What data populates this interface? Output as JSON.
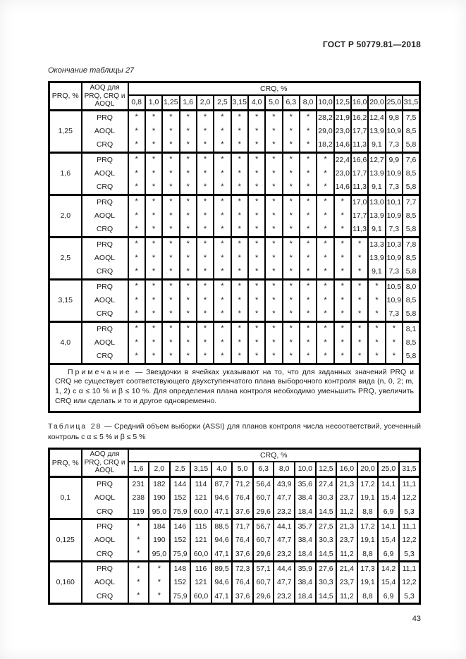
{
  "page": {
    "header_right": "ГОСТ Р 50779.81—2018",
    "page_number": "43"
  },
  "table27": {
    "continuation_caption": "Окончание таблицы 27",
    "col1_header": "PRQ, %",
    "col2_header": "AOQ для PRQ, CRQ и AOQL",
    "crq_header": "CRQ, %",
    "crq_columns": [
      "0,8",
      "1,0",
      "1,25",
      "1,6",
      "2,0",
      "2,5",
      "3,15",
      "4,0",
      "5,0",
      "6,3",
      "8,0",
      "10,0",
      "12,5",
      "16,0",
      "20,0",
      "25,0",
      "31,5"
    ],
    "row_labels": [
      "PRQ",
      "AOQL",
      "CRQ"
    ],
    "groups": [
      {
        "prq": "1,25",
        "rows": [
          [
            "*",
            "*",
            "*",
            "*",
            "*",
            "*",
            "*",
            "*",
            "*",
            "*",
            "*",
            "28,2",
            "21,9",
            "16,2",
            "12,4",
            "9,8",
            "7,5"
          ],
          [
            "*",
            "*",
            "*",
            "*",
            "*",
            "*",
            "*",
            "*",
            "*",
            "*",
            "*",
            "29,0",
            "23,0",
            "17,7",
            "13,9",
            "10,9",
            "8,5"
          ],
          [
            "*",
            "*",
            "*",
            "*",
            "*",
            "*",
            "*",
            "*",
            "*",
            "*",
            "*",
            "18,2",
            "14,6",
            "11,3",
            "9,1",
            "7,3",
            "5,8"
          ]
        ]
      },
      {
        "prq": "1,6",
        "rows": [
          [
            "*",
            "*",
            "*",
            "*",
            "*",
            "*",
            "*",
            "*",
            "*",
            "*",
            "*",
            "*",
            "22,4",
            "16,6",
            "12,7",
            "9,9",
            "7,6"
          ],
          [
            "*",
            "*",
            "*",
            "*",
            "*",
            "*",
            "*",
            "*",
            "*",
            "*",
            "*",
            "*",
            "23,0",
            "17,7",
            "13,9",
            "10,9",
            "8,5"
          ],
          [
            "*",
            "*",
            "*",
            "*",
            "*",
            "*",
            "*",
            "*",
            "*",
            "*",
            "*",
            "*",
            "14,6",
            "11,3",
            "9,1",
            "7,3",
            "5,8"
          ]
        ]
      },
      {
        "prq": "2,0",
        "rows": [
          [
            "*",
            "*",
            "*",
            "*",
            "*",
            "*",
            "*",
            "*",
            "*",
            "*",
            "*",
            "*",
            "*",
            "17,0",
            "13,0",
            "10,1",
            "7,7"
          ],
          [
            "*",
            "*",
            "*",
            "*",
            "*",
            "*",
            "*",
            "*",
            "*",
            "*",
            "*",
            "*",
            "*",
            "17,7",
            "13,9",
            "10,9",
            "8,5"
          ],
          [
            "*",
            "*",
            "*",
            "*",
            "*",
            "*",
            "*",
            "*",
            "*",
            "*",
            "*",
            "*",
            "*",
            "11,3",
            "9,1",
            "7,3",
            "5,8"
          ]
        ]
      },
      {
        "prq": "2,5",
        "rows": [
          [
            "*",
            "*",
            "*",
            "*",
            "*",
            "*",
            "*",
            "*",
            "*",
            "*",
            "*",
            "*",
            "*",
            "*",
            "13,3",
            "10,3",
            "7,8"
          ],
          [
            "*",
            "*",
            "*",
            "*",
            "*",
            "*",
            "*",
            "*",
            "*",
            "*",
            "*",
            "*",
            "*",
            "*",
            "13,9",
            "10,9",
            "8,5"
          ],
          [
            "*",
            "*",
            "*",
            "*",
            "*",
            "*",
            "*",
            "*",
            "*",
            "*",
            "*",
            "*",
            "*",
            "*",
            "9,1",
            "7,3",
            "5,8"
          ]
        ]
      },
      {
        "prq": "3,15",
        "rows": [
          [
            "*",
            "*",
            "*",
            "*",
            "*",
            "*",
            "*",
            "*",
            "*",
            "*",
            "*",
            "*",
            "*",
            "*",
            "*",
            "10,5",
            "8,0"
          ],
          [
            "*",
            "*",
            "*",
            "*",
            "*",
            "*",
            "*",
            "*",
            "*",
            "*",
            "*",
            "*",
            "*",
            "*",
            "*",
            "10,9",
            "8,5"
          ],
          [
            "*",
            "*",
            "*",
            "*",
            "*",
            "*",
            "*",
            "*",
            "*",
            "*",
            "*",
            "*",
            "*",
            "*",
            "*",
            "7,3",
            "5,8"
          ]
        ]
      },
      {
        "prq": "4,0",
        "rows": [
          [
            "*",
            "*",
            "*",
            "*",
            "*",
            "*",
            "*",
            "*",
            "*",
            "*",
            "*",
            "*",
            "*",
            "*",
            "*",
            "*",
            "8,1"
          ],
          [
            "*",
            "*",
            "*",
            "*",
            "*",
            "*",
            "*",
            "*",
            "*",
            "*",
            "*",
            "*",
            "*",
            "*",
            "*",
            "*",
            "8,5"
          ],
          [
            "*",
            "*",
            "*",
            "*",
            "*",
            "*",
            "*",
            "*",
            "*",
            "*",
            "*",
            "*",
            "*",
            "*",
            "*",
            "*",
            "5,8"
          ]
        ]
      }
    ],
    "note_label": "Примечание",
    "note_text": "— Звездочки в ячейках указывают на то, что для заданных значений PRQ и CRQ не существует соответствующего двухступенчатого плана выборочного контроля вида (n, 0, 2; m, 1, 2) с α ≤ 10 % и β ≤ 10 %. Для определения плана контроля необходимо уменьшить PRQ, увеличить CRQ или сделать и то и другое одновременно."
  },
  "table28": {
    "caption_label": "Таблица 28",
    "caption_text": "— Средний объем выборки (ASSI) для планов контроля числа несоответствий, усеченный контроль с α ≤ 5 % и β ≤ 5 %",
    "col1_header": "PRQ, %",
    "col2_header": "AOQ для PRQ, CRQ и AOQL",
    "crq_header": "CRQ, %",
    "crq_columns": [
      "1,6",
      "2,0",
      "2,5",
      "3,15",
      "4,0",
      "5,0",
      "6,3",
      "8,0",
      "10,0",
      "12,5",
      "16,0",
      "20,0",
      "25,0",
      "31,5"
    ],
    "row_labels": [
      "PRQ",
      "AOQL",
      "CRQ"
    ],
    "groups": [
      {
        "prq": "0,1",
        "rows": [
          [
            "231",
            "182",
            "144",
            "114",
            "87,7",
            "71,2",
            "56,4",
            "43,9",
            "35,6",
            "27,4",
            "21,3",
            "17,2",
            "14,1",
            "11,1"
          ],
          [
            "238",
            "190",
            "152",
            "121",
            "94,6",
            "76,4",
            "60,7",
            "47,7",
            "38,4",
            "30,3",
            "23,7",
            "19,1",
            "15,4",
            "12,2"
          ],
          [
            "119",
            "95,0",
            "75,9",
            "60,0",
            "47,1",
            "37,6",
            "29,6",
            "23,2",
            "18,4",
            "14,5",
            "11,2",
            "8,8",
            "6,9",
            "5,3"
          ]
        ]
      },
      {
        "prq": "0,125",
        "rows": [
          [
            "*",
            "184",
            "146",
            "115",
            "88,5",
            "71,7",
            "56,7",
            "44,1",
            "35,7",
            "27,5",
            "21,3",
            "17,2",
            "14,1",
            "11,1"
          ],
          [
            "*",
            "190",
            "152",
            "121",
            "94,6",
            "76,4",
            "60,7",
            "47,7",
            "38,4",
            "30,3",
            "23,7",
            "19,1",
            "15,4",
            "12,2"
          ],
          [
            "*",
            "95,0",
            "75,9",
            "60,0",
            "47,1",
            "37,6",
            "29,6",
            "23,2",
            "18,4",
            "14,5",
            "11,2",
            "8,8",
            "6,9",
            "5,3"
          ]
        ]
      },
      {
        "prq": "0,160",
        "rows": [
          [
            "*",
            "*",
            "148",
            "116",
            "89,5",
            "72,3",
            "57,1",
            "44,4",
            "35,9",
            "27,6",
            "21,4",
            "17,3",
            "14,2",
            "11,1"
          ],
          [
            "*",
            "*",
            "152",
            "121",
            "94,6",
            "76,4",
            "60,7",
            "47,7",
            "38,4",
            "30,3",
            "23,7",
            "19,1",
            "15,4",
            "12,2"
          ],
          [
            "*",
            "*",
            "75,9",
            "60,0",
            "47,1",
            "37,6",
            "29,6",
            "23,2",
            "18,4",
            "14,5",
            "11,2",
            "8,8",
            "6,9",
            "5,3"
          ]
        ]
      }
    ]
  }
}
